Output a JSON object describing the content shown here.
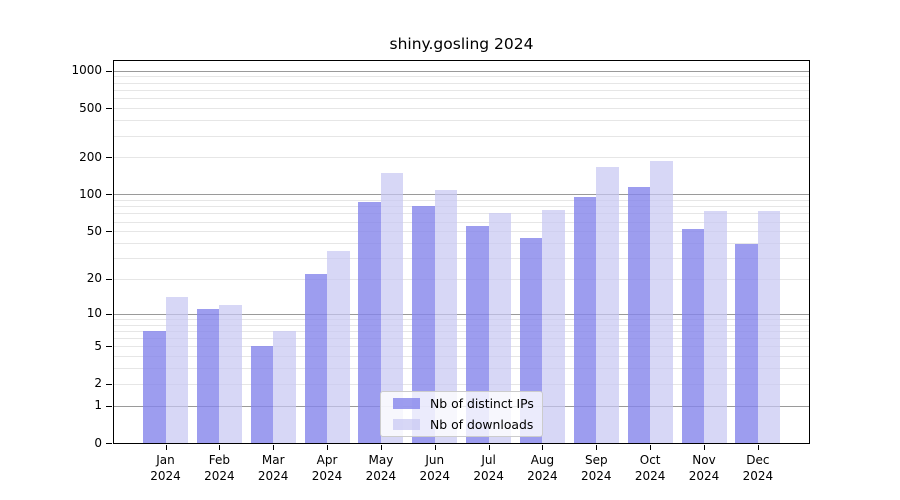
{
  "chart_data": {
    "type": "bar",
    "title": "shiny.gosling 2024",
    "months": [
      "Jan",
      "Feb",
      "Mar",
      "Apr",
      "May",
      "Jun",
      "Jul",
      "Aug",
      "Sep",
      "Oct",
      "Nov",
      "Dec"
    ],
    "year": "2024",
    "series": [
      {
        "name": "Nb of distinct IPs",
        "color": "rgba(132,132,235,0.8)",
        "values": [
          7,
          11,
          5,
          22,
          87,
          80,
          55,
          44,
          95,
          115,
          52,
          39
        ]
      },
      {
        "name": "Nb of downloads",
        "color": "rgba(198,198,242,0.7)",
        "values": [
          14,
          12,
          7,
          34,
          149,
          108,
          70,
          75,
          167,
          186,
          73,
          73
        ]
      }
    ],
    "y_ticks": [
      0,
      1,
      2,
      5,
      10,
      20,
      50,
      100,
      200,
      500,
      1000
    ],
    "y_scale": "log10(1+value)",
    "y_max": 1200,
    "ylim": [
      0,
      1200
    ],
    "grid": {
      "major_lines": [
        1,
        10,
        100,
        1000
      ],
      "major_color": "#9a9a9a",
      "minor_color": "#e6e6e6"
    },
    "legend_position": "inside-bottom-center",
    "background_color": "#ffffff",
    "axis_color": "#000000"
  }
}
